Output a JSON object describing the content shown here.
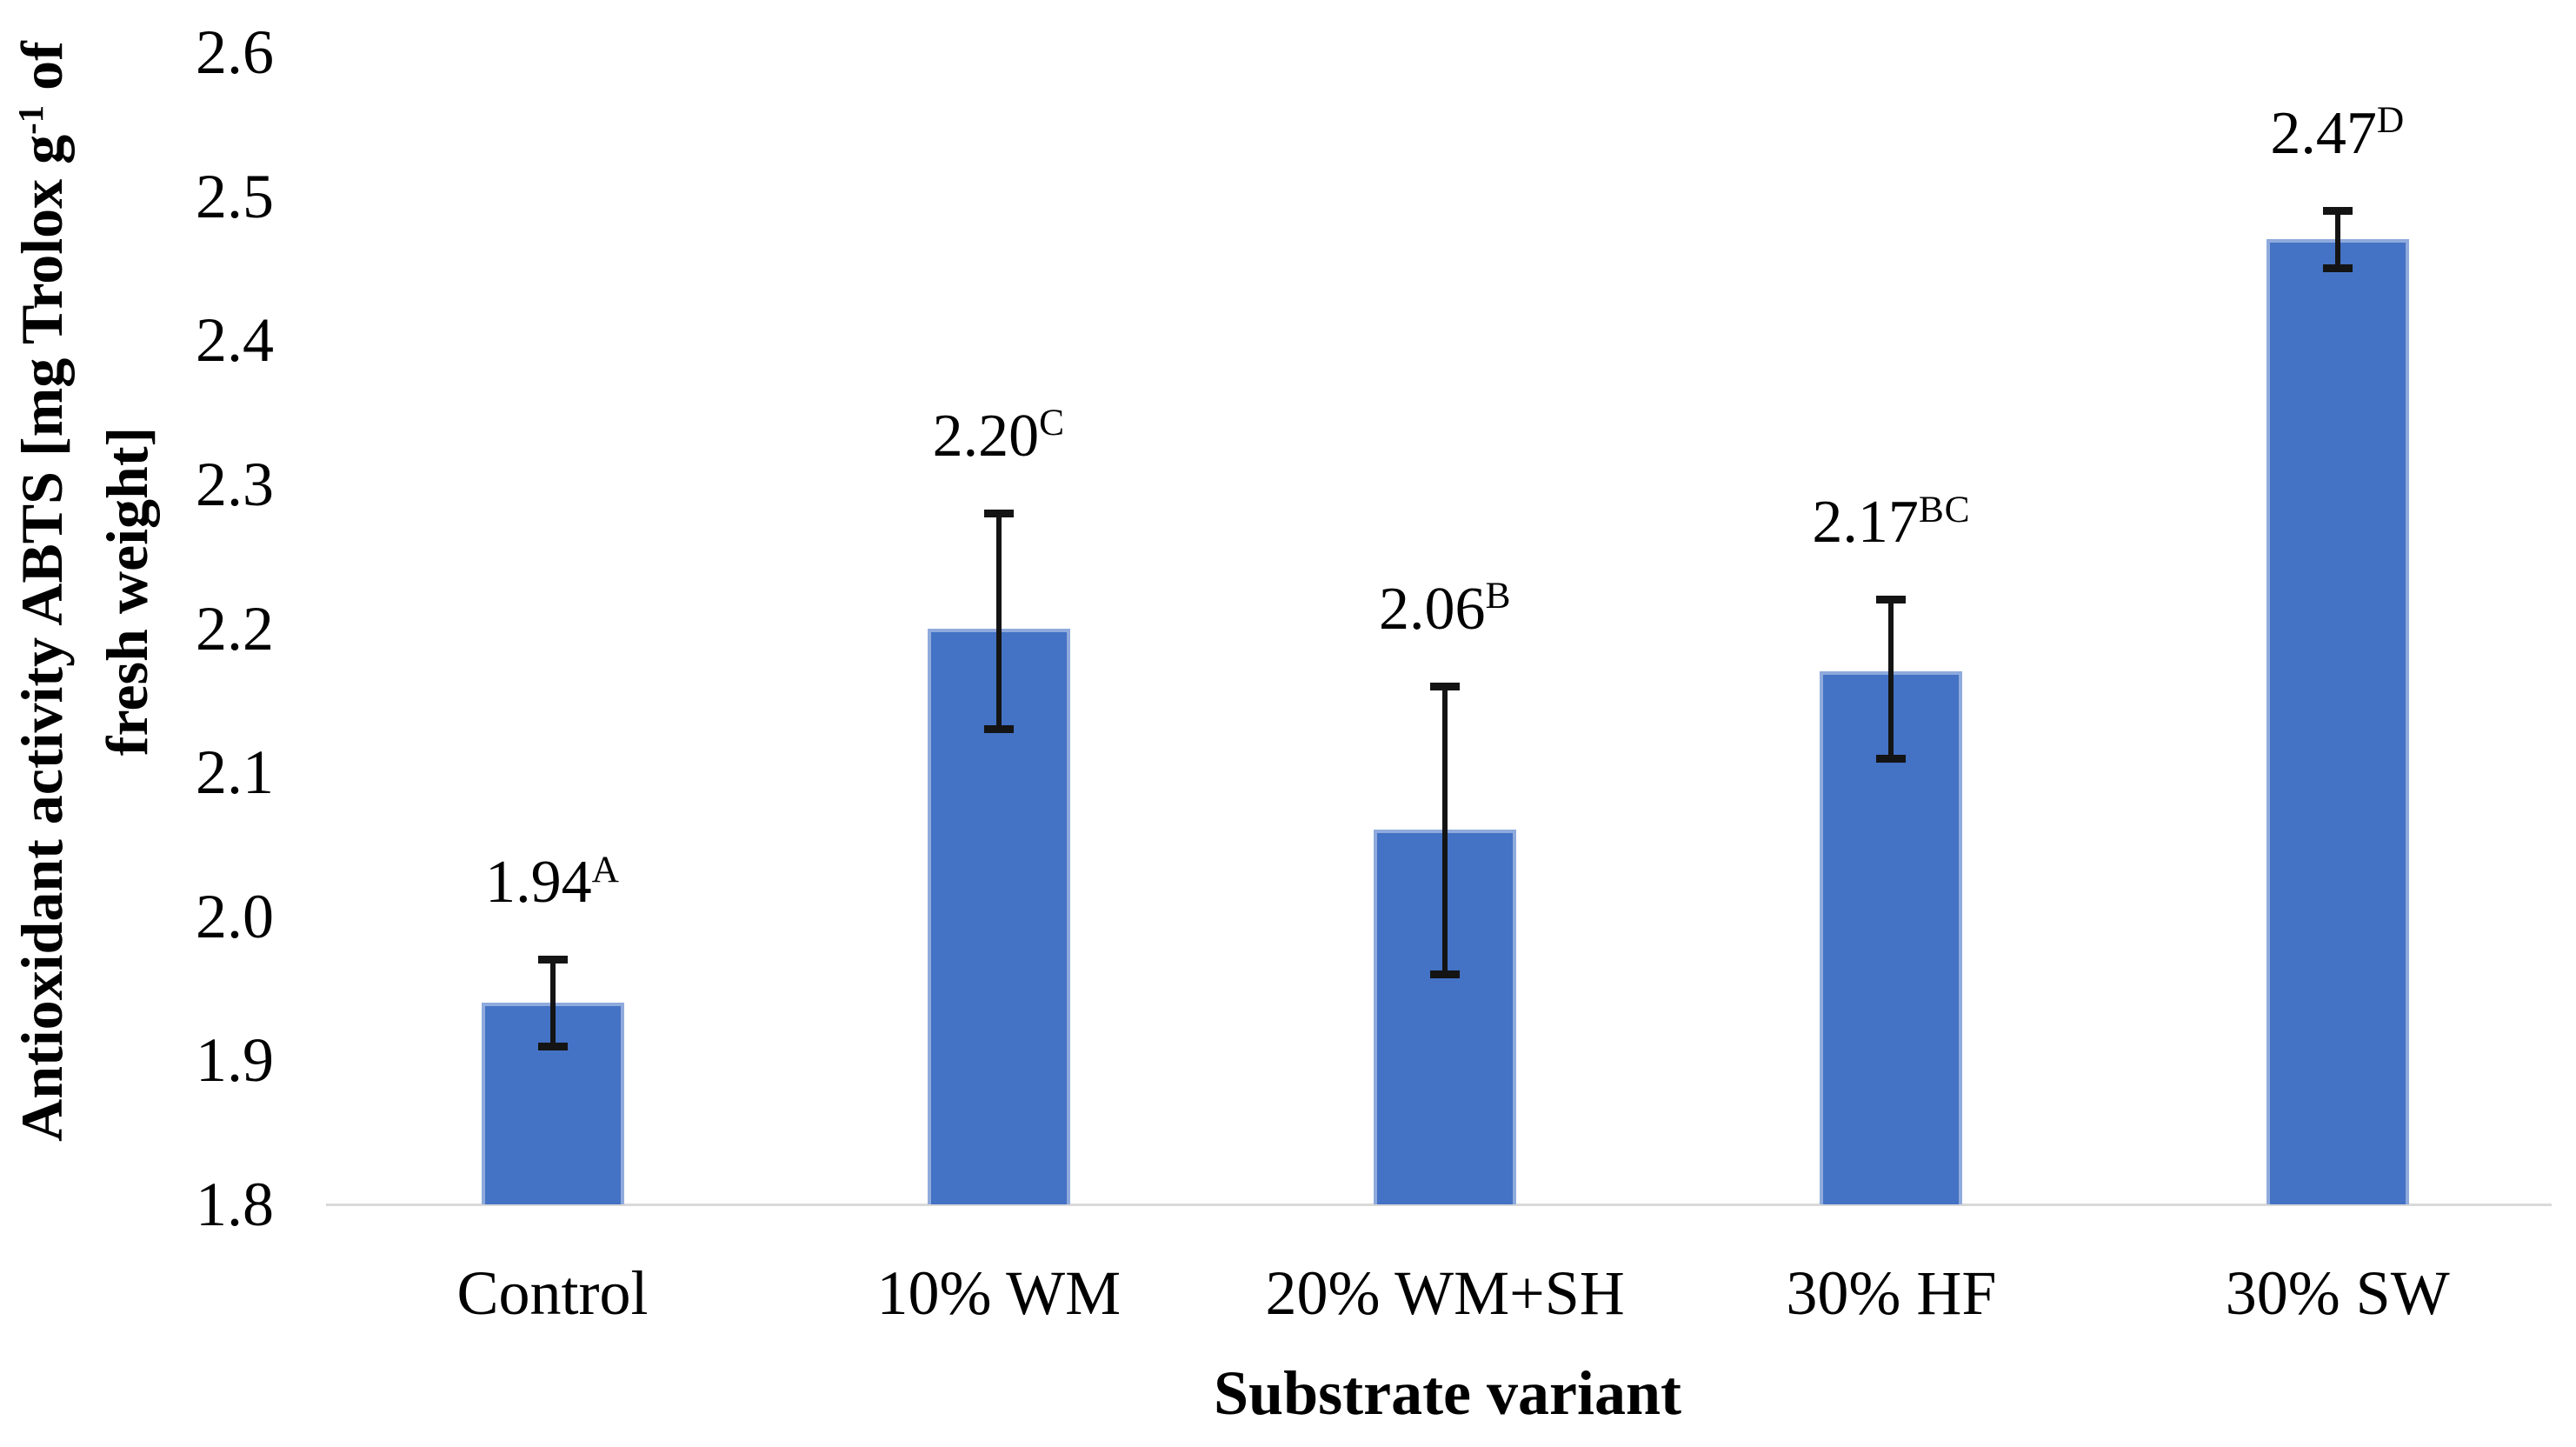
{
  "chart_data": {
    "type": "bar",
    "title": "",
    "xlabel": "Substrate variant",
    "ylabel": {
      "line1_prefix": "Antioxidant activity ABTS [mg Trolox g",
      "line1_sup": "-1",
      "line1_suffix": " of",
      "line2": "fresh weight]",
      "full": "Antioxidant activity ABTS [mg Trolox g-1 of fresh weight]"
    },
    "categories": [
      "Control",
      "10% WM",
      "20% WM+SH",
      "30% HF",
      "30% SW"
    ],
    "series": [
      {
        "name": "Antioxidant activity ABTS",
        "values": [
          1.94,
          2.2,
          2.06,
          2.17,
          2.47
        ],
        "data_labels": [
          {
            "value": "1.94",
            "sig": "A"
          },
          {
            "value": "2.20",
            "sig": "C"
          },
          {
            "value": "2.06",
            "sig": "B"
          },
          {
            "value": "2.17",
            "sig": "BC"
          },
          {
            "value": "2.47",
            "sig": "D"
          }
        ],
        "error_bars": {
          "upper": [
            1.97,
            2.28,
            2.16,
            2.22,
            2.49
          ],
          "lower": [
            1.91,
            2.13,
            1.96,
            2.11,
            2.45
          ]
        }
      }
    ],
    "ylim": [
      1.8,
      2.6
    ],
    "ytick_labels": [
      "1.8",
      "1.9",
      "2.0",
      "2.1",
      "2.2",
      "2.3",
      "2.4",
      "2.5",
      "2.6"
    ],
    "grid": false,
    "legend": false,
    "colors": {
      "bar_fill": "#4472C4",
      "bar_border": "#8FAADC",
      "error_bar": "#141414",
      "baseline": "#D9D9D9",
      "text": "#000000"
    }
  }
}
